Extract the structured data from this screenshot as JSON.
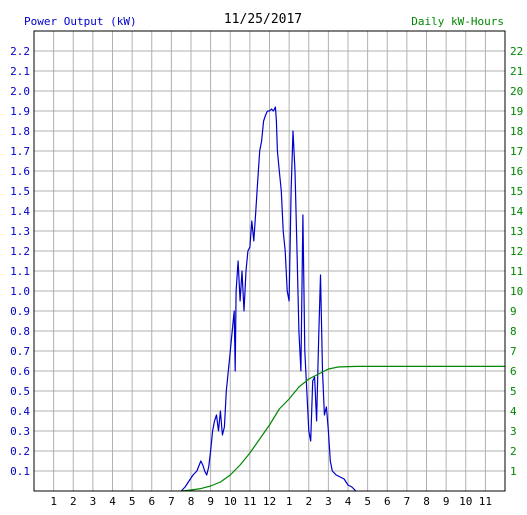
{
  "header": {
    "left_label": "Power Output (kW)",
    "date": "11/25/2017",
    "right_label": "Daily kW-Hours"
  },
  "colors": {
    "power": "#0000cc",
    "energy": "#008800",
    "grid": "#b0b0b0",
    "frame": "#000000",
    "background": "#ffffff"
  },
  "chart_data": {
    "type": "line",
    "title": "11/25/2017",
    "grid": true,
    "x_axis": {
      "unit": "hour of day",
      "range": [
        0,
        24
      ],
      "tick_labels": [
        "1",
        "2",
        "3",
        "4",
        "5",
        "6",
        "7",
        "8",
        "9",
        "10",
        "11",
        "12",
        "1",
        "2",
        "3",
        "4",
        "5",
        "6",
        "7",
        "8",
        "9",
        "10",
        "11"
      ]
    },
    "y_left": {
      "label": "Power Output (kW)",
      "range": [
        0,
        2.3
      ],
      "tick_labels": [
        "0.1",
        "0.2",
        "0.3",
        "0.4",
        "0.5",
        "0.6",
        "0.7",
        "0.8",
        "0.9",
        "1.0",
        "1.1",
        "1.2",
        "1.3",
        "1.4",
        "1.5",
        "1.6",
        "1.7",
        "1.8",
        "1.9",
        "2.0",
        "2.1",
        "2.2"
      ]
    },
    "y_right": {
      "label": "Daily kW-Hours",
      "range": [
        0,
        23
      ],
      "tick_labels": [
        "1",
        "2",
        "3",
        "4",
        "5",
        "6",
        "7",
        "8",
        "9",
        "10",
        "11",
        "12",
        "13",
        "14",
        "15",
        "16",
        "17",
        "18",
        "19",
        "20",
        "21",
        "22"
      ]
    },
    "series": [
      {
        "name": "Power Output (kW)",
        "axis": "left",
        "points": [
          [
            7.5,
            0.0
          ],
          [
            7.7,
            0.02
          ],
          [
            7.9,
            0.05
          ],
          [
            8.1,
            0.08
          ],
          [
            8.3,
            0.1
          ],
          [
            8.5,
            0.15
          ],
          [
            8.6,
            0.13
          ],
          [
            8.7,
            0.1
          ],
          [
            8.8,
            0.08
          ],
          [
            8.9,
            0.12
          ],
          [
            9.0,
            0.2
          ],
          [
            9.1,
            0.3
          ],
          [
            9.2,
            0.35
          ],
          [
            9.3,
            0.38
          ],
          [
            9.4,
            0.3
          ],
          [
            9.5,
            0.4
          ],
          [
            9.6,
            0.28
          ],
          [
            9.7,
            0.32
          ],
          [
            9.8,
            0.5
          ],
          [
            9.9,
            0.6
          ],
          [
            10.0,
            0.7
          ],
          [
            10.1,
            0.8
          ],
          [
            10.2,
            0.9
          ],
          [
            10.25,
            0.6
          ],
          [
            10.3,
            1.0
          ],
          [
            10.4,
            1.15
          ],
          [
            10.5,
            0.95
          ],
          [
            10.6,
            1.1
          ],
          [
            10.7,
            0.9
          ],
          [
            10.8,
            1.1
          ],
          [
            10.9,
            1.2
          ],
          [
            11.0,
            1.22
          ],
          [
            11.1,
            1.35
          ],
          [
            11.2,
            1.25
          ],
          [
            11.3,
            1.4
          ],
          [
            11.4,
            1.55
          ],
          [
            11.5,
            1.7
          ],
          [
            11.6,
            1.75
          ],
          [
            11.7,
            1.85
          ],
          [
            11.8,
            1.88
          ],
          [
            11.9,
            1.9
          ],
          [
            12.0,
            1.9
          ],
          [
            12.1,
            1.91
          ],
          [
            12.2,
            1.9
          ],
          [
            12.3,
            1.92
          ],
          [
            12.35,
            1.85
          ],
          [
            12.4,
            1.7
          ],
          [
            12.5,
            1.6
          ],
          [
            12.6,
            1.5
          ],
          [
            12.7,
            1.3
          ],
          [
            12.8,
            1.2
          ],
          [
            12.9,
            1.0
          ],
          [
            13.0,
            0.95
          ],
          [
            13.1,
            1.5
          ],
          [
            13.2,
            1.8
          ],
          [
            13.3,
            1.6
          ],
          [
            13.4,
            1.2
          ],
          [
            13.5,
            0.8
          ],
          [
            13.6,
            0.6
          ],
          [
            13.7,
            1.38
          ],
          [
            13.8,
            0.7
          ],
          [
            13.9,
            0.5
          ],
          [
            14.0,
            0.3
          ],
          [
            14.1,
            0.25
          ],
          [
            14.2,
            0.55
          ],
          [
            14.3,
            0.57
          ],
          [
            14.4,
            0.35
          ],
          [
            14.5,
            0.75
          ],
          [
            14.6,
            1.08
          ],
          [
            14.7,
            0.6
          ],
          [
            14.8,
            0.38
          ],
          [
            14.9,
            0.42
          ],
          [
            15.0,
            0.3
          ],
          [
            15.1,
            0.15
          ],
          [
            15.2,
            0.1
          ],
          [
            15.4,
            0.08
          ],
          [
            15.6,
            0.07
          ],
          [
            15.8,
            0.06
          ],
          [
            16.0,
            0.03
          ],
          [
            16.2,
            0.02
          ],
          [
            16.4,
            0.0
          ]
        ]
      },
      {
        "name": "Daily kW-Hours",
        "axis": "right",
        "points": [
          [
            7.5,
            0.0
          ],
          [
            8.0,
            0.05
          ],
          [
            8.5,
            0.12
          ],
          [
            9.0,
            0.25
          ],
          [
            9.5,
            0.45
          ],
          [
            10.0,
            0.8
          ],
          [
            10.5,
            1.3
          ],
          [
            11.0,
            1.9
          ],
          [
            11.5,
            2.6
          ],
          [
            12.0,
            3.3
          ],
          [
            12.5,
            4.1
          ],
          [
            13.0,
            4.6
          ],
          [
            13.5,
            5.2
          ],
          [
            14.0,
            5.6
          ],
          [
            14.5,
            5.85
          ],
          [
            15.0,
            6.1
          ],
          [
            15.5,
            6.2
          ],
          [
            16.0,
            6.22
          ],
          [
            16.5,
            6.23
          ],
          [
            24.0,
            6.23
          ]
        ]
      }
    ]
  }
}
